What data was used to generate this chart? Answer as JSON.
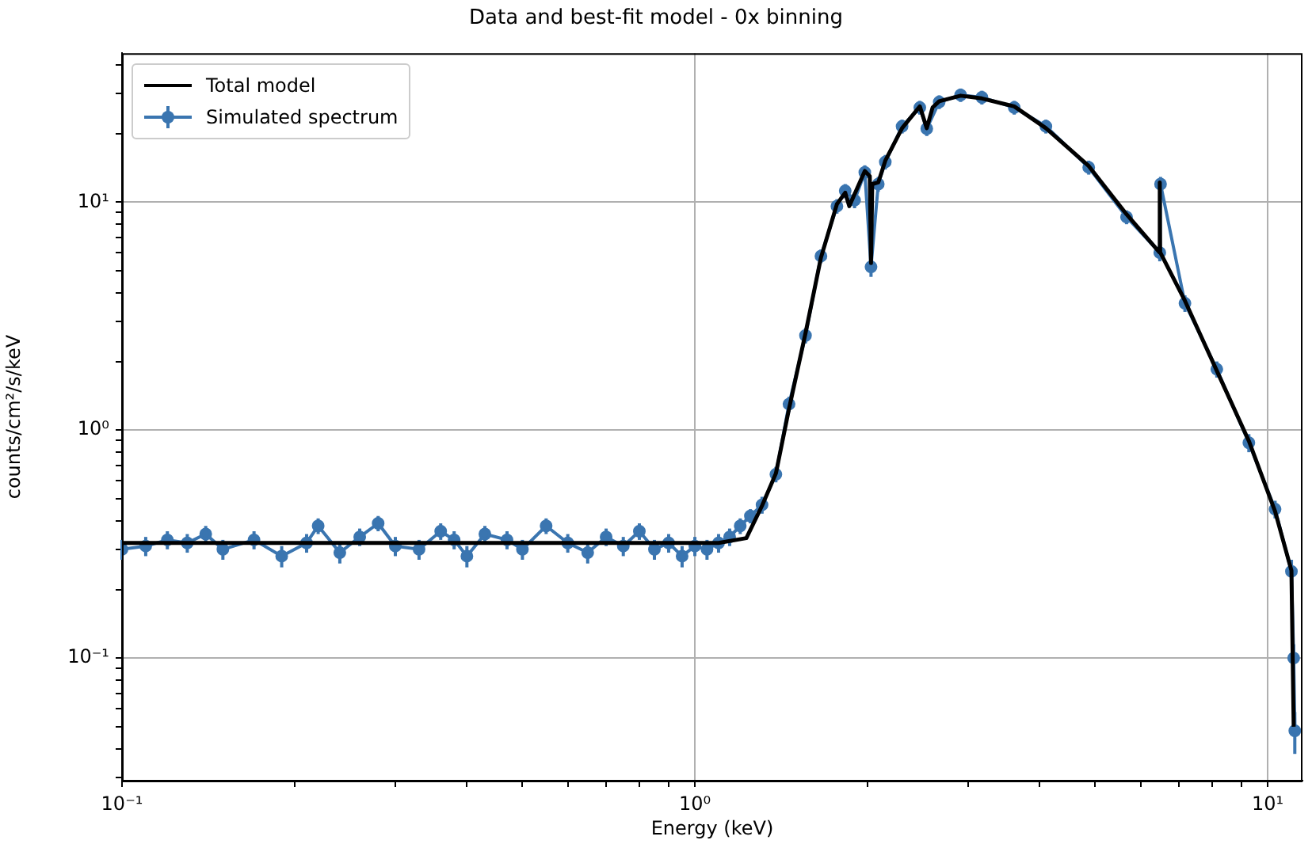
{
  "chart_data": {
    "type": "line",
    "title": "Data and best-fit model - 0x binning",
    "xlabel": "Energy (keV)",
    "ylabel": "counts/cm²/s/keV",
    "log": "xy",
    "grid": true,
    "legend": "top left",
    "xlim": [
      0.1,
      11.5
    ],
    "ylim": [
      0.029,
      45
    ],
    "xticks": [
      {
        "value": 0.1,
        "label": "10⁻¹"
      },
      {
        "value": 0.2,
        "label": null
      },
      {
        "value": 0.3,
        "label": null
      },
      {
        "value": 0.4,
        "label": null
      },
      {
        "value": 0.5,
        "label": null
      },
      {
        "value": 0.6,
        "label": null
      },
      {
        "value": 0.7,
        "label": null
      },
      {
        "value": 0.8,
        "label": null
      },
      {
        "value": 0.9,
        "label": null
      },
      {
        "value": 1,
        "label": "10⁰"
      },
      {
        "value": 2,
        "label": null
      },
      {
        "value": 3,
        "label": null
      },
      {
        "value": 4,
        "label": null
      },
      {
        "value": 5,
        "label": null
      },
      {
        "value": 6,
        "label": null
      },
      {
        "value": 7,
        "label": null
      },
      {
        "value": 8,
        "label": null
      },
      {
        "value": 9,
        "label": null
      },
      {
        "value": 10,
        "label": "10¹"
      }
    ],
    "yticks": [
      {
        "value": 0.03,
        "label": null
      },
      {
        "value": 0.04,
        "label": null
      },
      {
        "value": 0.05,
        "label": null
      },
      {
        "value": 0.06,
        "label": null
      },
      {
        "value": 0.07,
        "label": null
      },
      {
        "value": 0.08,
        "label": null
      },
      {
        "value": 0.09,
        "label": null
      },
      {
        "value": 0.1,
        "label": "10⁻¹"
      },
      {
        "value": 0.2,
        "label": null
      },
      {
        "value": 0.3,
        "label": null
      },
      {
        "value": 0.4,
        "label": null
      },
      {
        "value": 0.5,
        "label": null
      },
      {
        "value": 0.6,
        "label": null
      },
      {
        "value": 0.7,
        "label": null
      },
      {
        "value": 0.8,
        "label": null
      },
      {
        "value": 0.9,
        "label": null
      },
      {
        "value": 1,
        "label": "10⁰"
      },
      {
        "value": 2,
        "label": null
      },
      {
        "value": 3,
        "label": null
      },
      {
        "value": 4,
        "label": null
      },
      {
        "value": 5,
        "label": null
      },
      {
        "value": 6,
        "label": null
      },
      {
        "value": 7,
        "label": null
      },
      {
        "value": 8,
        "label": null
      },
      {
        "value": 9,
        "label": null
      },
      {
        "value": 10,
        "label": "10¹"
      },
      {
        "value": 20,
        "label": null
      },
      {
        "value": 30,
        "label": null
      },
      {
        "value": 40,
        "label": null
      }
    ],
    "series": [
      {
        "name": "Total model",
        "color": "#000000",
        "marker": "none",
        "line_style": "solid",
        "x": [
          0.1,
          0.5,
          1.0,
          1.1,
          1.23,
          1.31,
          1.385,
          1.46,
          1.56,
          1.66,
          1.77,
          1.83,
          1.86,
          1.98,
          2.02,
          2.03,
          2.04,
          2.09,
          2.15,
          2.3,
          2.47,
          2.54,
          2.6,
          2.67,
          2.91,
          3.17,
          3.61,
          4.1,
          4.87,
          5.67,
          6.47,
          6.48,
          6.49,
          7.17,
          8.15,
          9.27,
          10.3,
          11.0,
          11.1
        ],
        "values": [
          0.32,
          0.32,
          0.32,
          0.32,
          0.336,
          0.466,
          0.646,
          1.24,
          2.66,
          5.71,
          9.8,
          11.0,
          9.6,
          13.7,
          13.0,
          5.4,
          12.0,
          12.2,
          15.2,
          21.1,
          26.3,
          21.1,
          26.0,
          27.7,
          29.3,
          28.5,
          26.3,
          21.1,
          14.4,
          8.84,
          6.03,
          12.2,
          6.03,
          3.69,
          1.82,
          0.896,
          0.44,
          0.242,
          0.05
        ]
      },
      {
        "name": "Simulated spectrum",
        "color": "#3a75b0",
        "marker": "circle",
        "line_style": "solid",
        "x": [
          0.1,
          0.11,
          0.12,
          0.13,
          0.14,
          0.15,
          0.17,
          0.19,
          0.21,
          0.22,
          0.24,
          0.26,
          0.28,
          0.3,
          0.33,
          0.36,
          0.38,
          0.4,
          0.43,
          0.47,
          0.5,
          0.55,
          0.6,
          0.65,
          0.7,
          0.75,
          0.8,
          0.85,
          0.9,
          0.95,
          1.0,
          1.05,
          1.1,
          1.15,
          1.2,
          1.25,
          1.31,
          1.385,
          1.46,
          1.56,
          1.66,
          1.77,
          1.83,
          1.9,
          1.98,
          2.03,
          2.09,
          2.15,
          2.3,
          2.47,
          2.54,
          2.67,
          2.91,
          3.17,
          3.61,
          4.1,
          4.87,
          5.67,
          6.48,
          6.5,
          7.17,
          8.15,
          9.27,
          10.3,
          11.0,
          11.1,
          11.15
        ],
        "values": [
          0.3,
          0.31,
          0.33,
          0.32,
          0.35,
          0.3,
          0.33,
          0.28,
          0.32,
          0.38,
          0.29,
          0.34,
          0.39,
          0.31,
          0.3,
          0.36,
          0.33,
          0.28,
          0.35,
          0.33,
          0.3,
          0.38,
          0.32,
          0.29,
          0.34,
          0.31,
          0.36,
          0.3,
          0.32,
          0.28,
          0.31,
          0.3,
          0.32,
          0.34,
          0.38,
          0.42,
          0.47,
          0.64,
          1.3,
          2.6,
          5.8,
          9.6,
          11.2,
          10.2,
          13.5,
          5.2,
          12.0,
          15.0,
          21.5,
          26.0,
          21.0,
          27.5,
          29.5,
          28.8,
          26.0,
          21.5,
          14.2,
          8.6,
          6.0,
          12.0,
          3.6,
          1.85,
          0.88,
          0.45,
          0.24,
          0.1,
          0.048
        ],
        "errors": [
          0.03,
          0.03,
          0.03,
          0.03,
          0.03,
          0.03,
          0.03,
          0.03,
          0.03,
          0.03,
          0.03,
          0.03,
          0.03,
          0.03,
          0.03,
          0.03,
          0.03,
          0.03,
          0.03,
          0.03,
          0.03,
          0.03,
          0.03,
          0.03,
          0.03,
          0.03,
          0.03,
          0.03,
          0.03,
          0.03,
          0.03,
          0.03,
          0.03,
          0.03,
          0.03,
          0.03,
          0.04,
          0.05,
          0.1,
          0.2,
          0.4,
          0.7,
          0.8,
          0.8,
          1.0,
          0.5,
          0.9,
          1.1,
          1.5,
          1.8,
          1.5,
          1.9,
          2.0,
          2.0,
          1.8,
          1.5,
          1.0,
          0.6,
          0.5,
          0.9,
          0.3,
          0.15,
          0.08,
          0.04,
          0.03,
          0.015,
          0.01
        ]
      }
    ]
  }
}
